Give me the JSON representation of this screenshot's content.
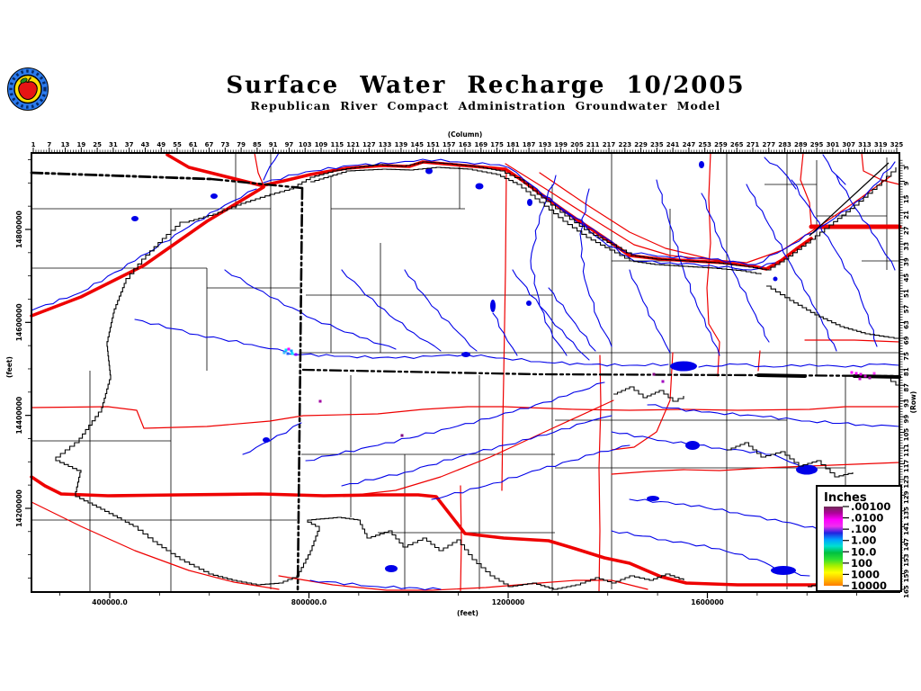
{
  "header": {
    "title": "Surface Water Recharge 10/2005",
    "subtitle": "Republican River Compact Administration Groundwater Model",
    "logo": "apple-seal-logo"
  },
  "map": {
    "axes": {
      "top": {
        "title": "(Column)",
        "tick_labels": [
          1,
          7,
          13,
          19,
          25,
          31,
          37,
          43,
          49,
          55,
          61,
          67,
          73,
          79,
          85,
          91,
          97,
          103,
          109,
          115,
          121,
          127,
          133,
          139,
          145,
          151,
          157,
          163,
          169,
          175,
          181,
          187,
          193,
          199,
          205,
          211,
          217,
          223,
          229,
          235,
          241,
          247,
          253,
          259,
          265,
          271,
          277,
          283,
          289,
          295,
          301,
          307,
          313,
          319,
          325
        ]
      },
      "right": {
        "title": "(Row)",
        "tick_labels": [
          3,
          9,
          15,
          21,
          27,
          33,
          39,
          45,
          51,
          57,
          63,
          69,
          75,
          81,
          87,
          93,
          99,
          105,
          111,
          117,
          123,
          129,
          135,
          141,
          147,
          153,
          159,
          165
        ]
      },
      "left": {
        "title": "(feet)",
        "tick_labels": [
          "14800000",
          "14600000",
          "14400000",
          "14200000"
        ]
      },
      "bottom": {
        "title": "(feet)",
        "tick_labels": [
          "400000.0",
          "800000.0",
          "1200000",
          "1600000"
        ]
      }
    },
    "layer_colors": {
      "rivers": "#0000e8",
      "lakes": "#0000e8",
      "roads": "#ee0000",
      "county_lines": "#000000",
      "state_border": "#000000",
      "model_boundary": "#000000"
    }
  },
  "legend": {
    "title": "Inches",
    "tick_labels": [
      ".00100",
      ".0100",
      ".100",
      "1.00",
      "10.0",
      "100",
      "1000",
      "10000"
    ],
    "gradient_colors": [
      "#6e2a56",
      "#b0029b",
      "#ff00ff",
      "#ee30ee",
      "#2222e0",
      "#00a0ff",
      "#00e0d0",
      "#00c040",
      "#30e030",
      "#a8f000",
      "#ffff00",
      "#ffc000",
      "#ff7c00"
    ]
  }
}
